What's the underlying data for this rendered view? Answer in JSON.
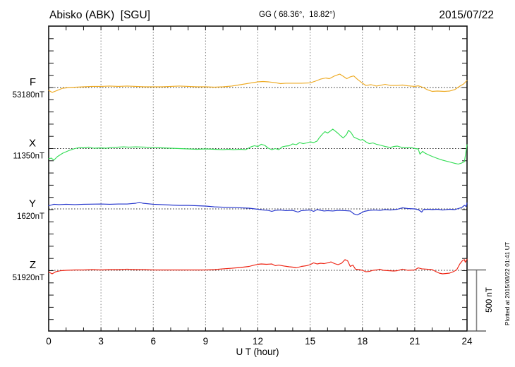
{
  "header": {
    "station_title": "Abisko (ABK)  [SGU]",
    "coords": "GG ( 68.36°,  18.82°)",
    "date": "2015/07/22"
  },
  "axis": {
    "xlabel": "U T (hour)",
    "hour_tick_labels": [
      0,
      3,
      6,
      9,
      12,
      15,
      18,
      21,
      24
    ],
    "scale_bar_label": "500 nT",
    "plotted_note": "Plotted at 2015/08/22 01:41 UT"
  },
  "chart_data": {
    "type": "line",
    "title": "Abisko (ABK) [SGU] magnetogram",
    "date": "2015/07/22",
    "xlabel": "U T (hour)",
    "x_unit": "hour UT",
    "x_range_hours": [
      0,
      24
    ],
    "x_gridline_hours": [
      3,
      6,
      9,
      12,
      15,
      18,
      21
    ],
    "x_minor_tick_every_hours": 1,
    "y_minor_tick_every_nT": 100,
    "scale_bar_nT": 500,
    "grid": "dotted",
    "legend_position": "left",
    "series": [
      {
        "name": "F",
        "label": "F",
        "baseline_value_label": "53180nT",
        "baseline_nT": 53180,
        "color": "#eeaa22",
        "points_hour_deltaNT": [
          [
            0,
            -23
          ],
          [
            0.2,
            -40
          ],
          [
            0.4,
            -29
          ],
          [
            0.8,
            -6
          ],
          [
            1.2,
            0
          ],
          [
            1.6,
            3
          ],
          [
            2,
            6
          ],
          [
            2.5,
            9
          ],
          [
            3,
            9
          ],
          [
            3.5,
            12
          ],
          [
            4,
            9
          ],
          [
            4.5,
            12
          ],
          [
            5,
            9
          ],
          [
            5.5,
            6
          ],
          [
            6.5,
            6
          ],
          [
            7,
            9
          ],
          [
            7.5,
            12
          ],
          [
            8,
            9
          ],
          [
            8.5,
            6
          ],
          [
            9,
            6
          ],
          [
            9.5,
            3
          ],
          [
            10,
            6
          ],
          [
            10.5,
            12
          ],
          [
            11,
            23
          ],
          [
            11.5,
            35
          ],
          [
            12,
            46
          ],
          [
            12.3,
            49
          ],
          [
            12.6,
            46
          ],
          [
            13,
            40
          ],
          [
            13.3,
            32
          ],
          [
            13.6,
            35
          ],
          [
            14.5,
            35
          ],
          [
            15,
            38
          ],
          [
            15.3,
            52
          ],
          [
            15.6,
            69
          ],
          [
            15.9,
            78
          ],
          [
            16.1,
            72
          ],
          [
            16.4,
            95
          ],
          [
            16.7,
            110
          ],
          [
            16.9,
            92
          ],
          [
            17.1,
            72
          ],
          [
            17.3,
            87
          ],
          [
            17.5,
            95
          ],
          [
            17.7,
            69
          ],
          [
            18,
            35
          ],
          [
            18.2,
            17
          ],
          [
            18.5,
            23
          ],
          [
            18.8,
            12
          ],
          [
            19,
            17
          ],
          [
            19.3,
            26
          ],
          [
            19.6,
            17
          ],
          [
            20,
            17
          ],
          [
            20.3,
            20
          ],
          [
            20.6,
            14
          ],
          [
            21,
            9
          ],
          [
            21.2,
            14
          ],
          [
            21.5,
            0
          ],
          [
            21.7,
            -17
          ],
          [
            22,
            -32
          ],
          [
            22.3,
            -29
          ],
          [
            22.7,
            -32
          ],
          [
            23,
            -29
          ],
          [
            23.3,
            -17
          ],
          [
            23.6,
            12
          ],
          [
            23.8,
            29
          ],
          [
            24,
            58
          ]
        ]
      },
      {
        "name": "X",
        "label": "X",
        "baseline_value_label": "11350nT",
        "baseline_nT": 11350,
        "color": "#33dd55",
        "points_hour_deltaNT": [
          [
            0,
            -84
          ],
          [
            0.15,
            -78
          ],
          [
            0.3,
            -95
          ],
          [
            0.5,
            -66
          ],
          [
            0.8,
            -38
          ],
          [
            1.2,
            -14
          ],
          [
            1.5,
            0
          ],
          [
            1.8,
            9
          ],
          [
            2,
            6
          ],
          [
            2.3,
            12
          ],
          [
            2.6,
            3
          ],
          [
            3,
            6
          ],
          [
            3.3,
            3
          ],
          [
            3.6,
            9
          ],
          [
            4,
            12
          ],
          [
            4.3,
            14
          ],
          [
            4.6,
            12
          ],
          [
            5,
            14
          ],
          [
            5.5,
            12
          ],
          [
            6,
            9
          ],
          [
            6.5,
            6
          ],
          [
            7,
            3
          ],
          [
            7.5,
            0
          ],
          [
            8,
            -3
          ],
          [
            8.5,
            -6
          ],
          [
            9,
            -3
          ],
          [
            9.5,
            -6
          ],
          [
            10,
            -9
          ],
          [
            10.3,
            -6
          ],
          [
            10.6,
            -9
          ],
          [
            11,
            -6
          ],
          [
            11.3,
            -9
          ],
          [
            11.6,
            14
          ],
          [
            11.8,
            23
          ],
          [
            12,
            17
          ],
          [
            12.2,
            35
          ],
          [
            12.4,
            26
          ],
          [
            12.6,
            3
          ],
          [
            12.8,
            -9
          ],
          [
            13,
            0
          ],
          [
            13.2,
            -9
          ],
          [
            13.4,
            14
          ],
          [
            13.6,
            20
          ],
          [
            13.8,
            23
          ],
          [
            14,
            38
          ],
          [
            14.2,
            32
          ],
          [
            14.4,
            49
          ],
          [
            14.6,
            40
          ],
          [
            14.8,
            46
          ],
          [
            15,
            55
          ],
          [
            15.2,
            49
          ],
          [
            15.4,
            61
          ],
          [
            15.5,
            84
          ],
          [
            15.7,
            118
          ],
          [
            15.85,
            139
          ],
          [
            16,
            127
          ],
          [
            16.15,
            142
          ],
          [
            16.3,
            159
          ],
          [
            16.45,
            142
          ],
          [
            16.6,
            124
          ],
          [
            16.75,
            104
          ],
          [
            16.9,
            87
          ],
          [
            17,
            101
          ],
          [
            17.1,
            118
          ],
          [
            17.2,
            150
          ],
          [
            17.35,
            130
          ],
          [
            17.5,
            95
          ],
          [
            17.7,
            81
          ],
          [
            17.9,
            69
          ],
          [
            18,
            75
          ],
          [
            18.2,
            55
          ],
          [
            18.4,
            40
          ],
          [
            18.6,
            46
          ],
          [
            18.8,
            35
          ],
          [
            19,
            29
          ],
          [
            19.3,
            17
          ],
          [
            19.6,
            9
          ],
          [
            19.8,
            17
          ],
          [
            20,
            20
          ],
          [
            20.2,
            12
          ],
          [
            20.5,
            6
          ],
          [
            20.8,
            9
          ],
          [
            21,
            0
          ],
          [
            21.2,
            -3
          ],
          [
            21.3,
            -46
          ],
          [
            21.45,
            -23
          ],
          [
            21.6,
            -38
          ],
          [
            21.8,
            -52
          ],
          [
            22,
            -64
          ],
          [
            22.3,
            -81
          ],
          [
            22.6,
            -95
          ],
          [
            23,
            -110
          ],
          [
            23.3,
            -121
          ],
          [
            23.5,
            -127
          ],
          [
            23.7,
            -118
          ],
          [
            23.85,
            -107
          ],
          [
            23.92,
            -43
          ],
          [
            24,
            32
          ]
        ]
      },
      {
        "name": "Y",
        "label": "Y",
        "baseline_value_label": "1620nT",
        "baseline_nT": 1620,
        "color": "#2233cc",
        "points_hour_deltaNT": [
          [
            0,
            26
          ],
          [
            0.3,
            38
          ],
          [
            0.6,
            35
          ],
          [
            1,
            38
          ],
          [
            1.5,
            35
          ],
          [
            2,
            38
          ],
          [
            3,
            40
          ],
          [
            3.5,
            38
          ],
          [
            4,
            40
          ],
          [
            4.5,
            40
          ],
          [
            5,
            46
          ],
          [
            5.2,
            55
          ],
          [
            5.4,
            46
          ],
          [
            6,
            38
          ],
          [
            6.5,
            35
          ],
          [
            7,
            32
          ],
          [
            7.5,
            29
          ],
          [
            8,
            29
          ],
          [
            8.5,
            26
          ],
          [
            9,
            23
          ],
          [
            9.5,
            17
          ],
          [
            10,
            14
          ],
          [
            10.5,
            12
          ],
          [
            11,
            9
          ],
          [
            11.5,
            6
          ],
          [
            12,
            -3
          ],
          [
            12.3,
            -9
          ],
          [
            12.6,
            -12
          ],
          [
            12.8,
            -20
          ],
          [
            13,
            -12
          ],
          [
            13.3,
            -9
          ],
          [
            13.6,
            -14
          ],
          [
            14,
            -12
          ],
          [
            14.3,
            -26
          ],
          [
            14.5,
            -14
          ],
          [
            15,
            -9
          ],
          [
            15.2,
            -20
          ],
          [
            15.4,
            -6
          ],
          [
            15.8,
            -17
          ],
          [
            16,
            -14
          ],
          [
            16.3,
            -17
          ],
          [
            16.6,
            -12
          ],
          [
            17,
            -14
          ],
          [
            17.3,
            -17
          ],
          [
            17.5,
            -40
          ],
          [
            17.7,
            -49
          ],
          [
            17.9,
            -35
          ],
          [
            18.1,
            -20
          ],
          [
            18.4,
            -12
          ],
          [
            18.7,
            -9
          ],
          [
            19,
            -12
          ],
          [
            19.3,
            -6
          ],
          [
            19.6,
            -9
          ],
          [
            20,
            -3
          ],
          [
            20.3,
            9
          ],
          [
            20.6,
            3
          ],
          [
            21,
            0
          ],
          [
            21.2,
            -6
          ],
          [
            21.4,
            -26
          ],
          [
            21.5,
            -6
          ],
          [
            21.8,
            -3
          ],
          [
            22,
            -6
          ],
          [
            22.3,
            -3
          ],
          [
            22.6,
            -9
          ],
          [
            23,
            -3
          ],
          [
            23.3,
            -6
          ],
          [
            23.5,
            3
          ],
          [
            23.7,
            12
          ],
          [
            23.85,
            29
          ],
          [
            23.95,
            20
          ],
          [
            24,
            49
          ]
        ]
      },
      {
        "name": "Z",
        "label": "Z",
        "baseline_value_label": "51920nT",
        "baseline_nT": 51920,
        "color": "#ee2211",
        "points_hour_deltaNT": [
          [
            0,
            -14
          ],
          [
            0.2,
            -29
          ],
          [
            0.4,
            -12
          ],
          [
            0.7,
            -3
          ],
          [
            1,
            0
          ],
          [
            1.5,
            3
          ],
          [
            2,
            3
          ],
          [
            2.5,
            6
          ],
          [
            3,
            3
          ],
          [
            3.5,
            6
          ],
          [
            4,
            6
          ],
          [
            4.5,
            9
          ],
          [
            5,
            6
          ],
          [
            5.5,
            6
          ],
          [
            6,
            3
          ],
          [
            7,
            3
          ],
          [
            8,
            3
          ],
          [
            9,
            3
          ],
          [
            9.5,
            6
          ],
          [
            10,
            12
          ],
          [
            10.5,
            17
          ],
          [
            11,
            23
          ],
          [
            11.5,
            32
          ],
          [
            11.8,
            43
          ],
          [
            12,
            49
          ],
          [
            12.2,
            52
          ],
          [
            12.5,
            49
          ],
          [
            12.8,
            52
          ],
          [
            13,
            38
          ],
          [
            13.2,
            43
          ],
          [
            13.5,
            35
          ],
          [
            13.8,
            29
          ],
          [
            14,
            26
          ],
          [
            14.2,
            20
          ],
          [
            14.5,
            32
          ],
          [
            14.8,
            38
          ],
          [
            15,
            46
          ],
          [
            15.2,
            61
          ],
          [
            15.4,
            52
          ],
          [
            15.6,
            58
          ],
          [
            15.8,
            55
          ],
          [
            16,
            61
          ],
          [
            16.2,
            69
          ],
          [
            16.4,
            55
          ],
          [
            16.6,
            46
          ],
          [
            16.8,
            58
          ],
          [
            17,
            87
          ],
          [
            17.15,
            78
          ],
          [
            17.3,
            32
          ],
          [
            17.45,
            43
          ],
          [
            17.6,
            9
          ],
          [
            17.8,
            6
          ],
          [
            18,
            0
          ],
          [
            18.2,
            -12
          ],
          [
            18.4,
            -9
          ],
          [
            18.6,
            0
          ],
          [
            18.8,
            3
          ],
          [
            19,
            9
          ],
          [
            19.2,
            0
          ],
          [
            19.5,
            -3
          ],
          [
            19.8,
            -6
          ],
          [
            20,
            -3
          ],
          [
            20.3,
            9
          ],
          [
            20.6,
            0
          ],
          [
            21,
            3
          ],
          [
            21.2,
            20
          ],
          [
            21.4,
            12
          ],
          [
            21.7,
            9
          ],
          [
            22,
            6
          ],
          [
            22.2,
            -9
          ],
          [
            22.4,
            -23
          ],
          [
            22.6,
            -29
          ],
          [
            22.8,
            -26
          ],
          [
            23,
            -23
          ],
          [
            23.2,
            -12
          ],
          [
            23.4,
            3
          ],
          [
            23.6,
            55
          ],
          [
            23.75,
            81
          ],
          [
            23.85,
            87
          ],
          [
            23.9,
            66
          ],
          [
            24,
            92
          ]
        ]
      }
    ]
  }
}
